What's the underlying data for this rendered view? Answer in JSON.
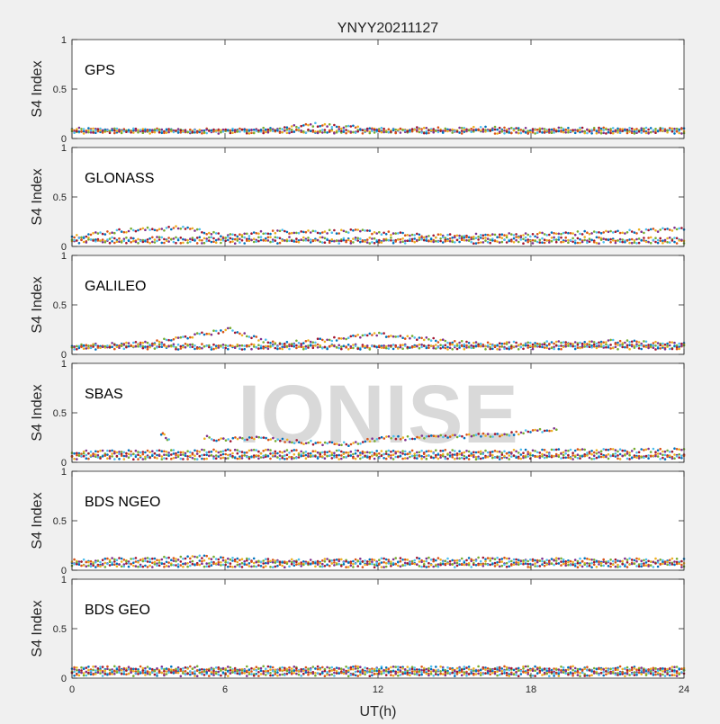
{
  "title": "YNYY20211127",
  "xlabel": "UT(h)",
  "watermark": "IONISE",
  "colors": {
    "background": "#f0f0f0",
    "axes_bg": "#ffffff",
    "axis": "#262626",
    "watermark": "#d9d9d9",
    "series": [
      "#0072BD",
      "#D95319",
      "#EDB120",
      "#7E2F8E",
      "#77AC30",
      "#4DBEEE",
      "#A2142F"
    ]
  },
  "chart_data": [
    {
      "type": "scatter",
      "panel_label": "GPS",
      "ylabel": "S4 Index",
      "xlim": [
        0,
        24
      ],
      "ylim": [
        0,
        1
      ],
      "yticks": [
        0,
        0.5,
        1
      ],
      "ytick_labels": [
        "0",
        "0.5",
        "1"
      ],
      "xticks": [
        0,
        6,
        12,
        18,
        24
      ],
      "xtick_labels": [],
      "series_profiles": [
        {
          "x": [
            0,
            4,
            8,
            9.5,
            12,
            16,
            20,
            24
          ],
          "y": [
            0.09,
            0.08,
            0.09,
            0.14,
            0.09,
            0.1,
            0.09,
            0.09
          ]
        },
        {
          "x": [
            0,
            6,
            12,
            18,
            24
          ],
          "y": [
            0.08,
            0.07,
            0.08,
            0.07,
            0.08
          ]
        },
        {
          "x": [
            0,
            12,
            24
          ],
          "y": [
            0.07,
            0.07,
            0.07
          ]
        }
      ]
    },
    {
      "type": "scatter",
      "panel_label": "GLONASS",
      "ylabel": "S4 Index",
      "xlim": [
        0,
        24
      ],
      "ylim": [
        0,
        1
      ],
      "yticks": [
        0,
        0.5,
        1
      ],
      "ytick_labels": [
        "0",
        "0.5",
        "1"
      ],
      "xticks": [
        0,
        6,
        12,
        18,
        24
      ],
      "xtick_labels": [],
      "series_profiles": [
        {
          "x": [
            0,
            2,
            4.5,
            6,
            8,
            11.5,
            14,
            18,
            22,
            24
          ],
          "y": [
            0.1,
            0.16,
            0.19,
            0.1,
            0.15,
            0.15,
            0.1,
            0.12,
            0.15,
            0.18
          ]
        },
        {
          "x": [
            0,
            6,
            12,
            18,
            24
          ],
          "y": [
            0.07,
            0.08,
            0.07,
            0.08,
            0.07
          ]
        },
        {
          "x": [
            0,
            12,
            24
          ],
          "y": [
            0.05,
            0.05,
            0.05
          ]
        }
      ]
    },
    {
      "type": "scatter",
      "panel_label": "GALILEO",
      "ylabel": "S4 Index",
      "xlim": [
        0,
        24
      ],
      "ylim": [
        0,
        1
      ],
      "yticks": [
        0,
        0.5,
        1
      ],
      "ytick_labels": [
        "0",
        "0.5",
        "1"
      ],
      "xticks": [
        0,
        6,
        12,
        18,
        24
      ],
      "xtick_labels": [],
      "series_profiles": [
        {
          "x": [
            0,
            3,
            6.2,
            8,
            12,
            16,
            21,
            24
          ],
          "y": [
            0.08,
            0.11,
            0.25,
            0.1,
            0.2,
            0.1,
            0.13,
            0.1
          ]
        },
        {
          "x": [
            0,
            6,
            12,
            18,
            24
          ],
          "y": [
            0.08,
            0.09,
            0.08,
            0.09,
            0.08
          ]
        },
        {
          "x": [
            0,
            12,
            24
          ],
          "y": [
            0.07,
            0.07,
            0.07
          ]
        }
      ]
    },
    {
      "type": "scatter",
      "panel_label": "SBAS",
      "ylabel": "S4 Index",
      "xlim": [
        0,
        24
      ],
      "ylim": [
        0,
        1
      ],
      "yticks": [
        0,
        0.5,
        1
      ],
      "ytick_labels": [
        "0",
        "0.5",
        "1"
      ],
      "xticks": [
        0,
        6,
        12,
        18,
        24
      ],
      "xtick_labels": [],
      "series_profiles": [
        {
          "x": [
            3.5,
            3.8
          ],
          "y": [
            0.3,
            0.22
          ]
        },
        {
          "x": [
            5.2,
            6,
            7,
            9,
            11,
            12,
            14,
            17,
            19
          ],
          "y": [
            0.25,
            0.22,
            0.25,
            0.2,
            0.18,
            0.24,
            0.25,
            0.28,
            0.34
          ]
        },
        {
          "x": [
            0,
            6,
            12,
            18,
            24
          ],
          "y": [
            0.1,
            0.11,
            0.1,
            0.11,
            0.12
          ]
        },
        {
          "x": [
            0,
            12,
            24
          ],
          "y": [
            0.07,
            0.07,
            0.07
          ]
        },
        {
          "x": [
            0,
            12,
            24
          ],
          "y": [
            0.05,
            0.05,
            0.05
          ]
        }
      ]
    },
    {
      "type": "scatter",
      "panel_label": "BDS NGEO",
      "ylabel": "S4 Index",
      "xlim": [
        0,
        24
      ],
      "ylim": [
        0,
        1
      ],
      "yticks": [
        0,
        0.5,
        1
      ],
      "ytick_labels": [
        "0",
        "0.5",
        "1"
      ],
      "xticks": [
        0,
        6,
        12,
        18,
        24
      ],
      "xtick_labels": [],
      "series_profiles": [
        {
          "x": [
            0,
            5.2,
            8,
            12,
            15,
            20,
            24
          ],
          "y": [
            0.09,
            0.13,
            0.09,
            0.1,
            0.11,
            0.1,
            0.1
          ]
        },
        {
          "x": [
            0,
            6,
            12,
            18,
            24
          ],
          "y": [
            0.07,
            0.08,
            0.07,
            0.08,
            0.07
          ]
        },
        {
          "x": [
            0,
            12,
            24
          ],
          "y": [
            0.05,
            0.05,
            0.05
          ]
        }
      ]
    },
    {
      "type": "scatter",
      "panel_label": "BDS GEO",
      "ylabel": "S4 Index",
      "xlim": [
        0,
        24
      ],
      "ylim": [
        0,
        1
      ],
      "yticks": [
        0,
        0.5,
        1
      ],
      "ytick_labels": [
        "0",
        "0.5",
        "1"
      ],
      "xticks": [
        0,
        6,
        12,
        18,
        24
      ],
      "xtick_labels": [
        "0",
        "6",
        "12",
        "18",
        "24"
      ],
      "series_profiles": [
        {
          "x": [
            0,
            12,
            24
          ],
          "y": [
            0.1,
            0.1,
            0.1
          ]
        },
        {
          "x": [
            0,
            12,
            24
          ],
          "y": [
            0.08,
            0.08,
            0.08
          ]
        },
        {
          "x": [
            0,
            12,
            24
          ],
          "y": [
            0.06,
            0.06,
            0.06
          ]
        },
        {
          "x": [
            0,
            12,
            24
          ],
          "y": [
            0.04,
            0.04,
            0.04
          ]
        }
      ]
    }
  ]
}
